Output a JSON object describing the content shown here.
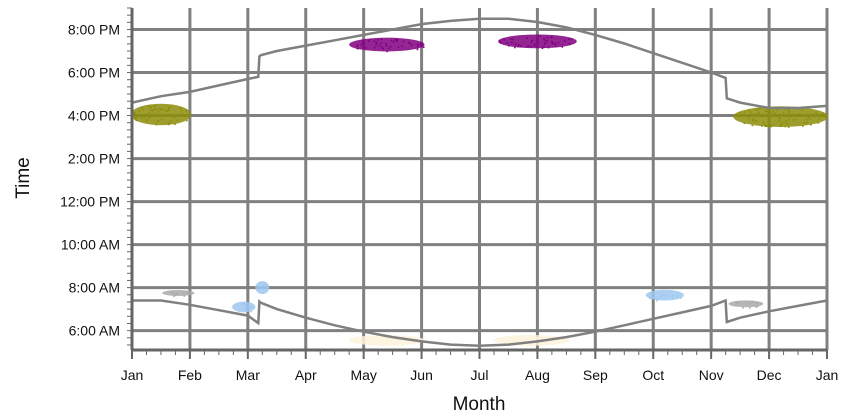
{
  "chart_data": {
    "type": "scatter",
    "xlabel": "Month",
    "ylabel": "Time",
    "x_tick_labels": [
      "Jan",
      "Feb",
      "Mar",
      "Apr",
      "May",
      "Jun",
      "Jul",
      "Aug",
      "Sep",
      "Oct",
      "Nov",
      "Dec",
      "Jan"
    ],
    "x_range_months": [
      0,
      12
    ],
    "y_tick_labels": [
      "6:00 AM",
      "8:00 AM",
      "10:00 AM",
      "12:00 PM",
      "2:00 PM",
      "4:00 PM",
      "6:00 PM",
      "8:00 PM"
    ],
    "y_tick_hours": [
      6,
      8,
      10,
      12,
      14,
      16,
      18,
      20
    ],
    "y_range_hours": [
      5.1,
      21.0
    ],
    "grid": true,
    "lines": [
      {
        "role": "sunset",
        "color": "#808080",
        "points": [
          [
            0.0,
            16.6
          ],
          [
            0.5,
            16.9
          ],
          [
            1.0,
            17.1
          ],
          [
            1.5,
            17.4
          ],
          [
            2.0,
            17.7
          ],
          [
            2.18,
            17.8
          ],
          [
            2.2,
            18.75
          ],
          [
            2.22,
            18.8
          ],
          [
            2.5,
            19.0
          ],
          [
            3.0,
            19.25
          ],
          [
            3.5,
            19.5
          ],
          [
            4.0,
            19.75
          ],
          [
            4.5,
            20.0
          ],
          [
            5.0,
            20.25
          ],
          [
            5.5,
            20.4
          ],
          [
            6.0,
            20.5
          ],
          [
            6.5,
            20.5
          ],
          [
            7.0,
            20.35
          ],
          [
            7.5,
            20.1
          ],
          [
            8.0,
            19.75
          ],
          [
            8.5,
            19.35
          ],
          [
            9.0,
            18.9
          ],
          [
            9.5,
            18.45
          ],
          [
            10.0,
            18.0
          ],
          [
            10.25,
            17.75
          ],
          [
            10.27,
            16.8
          ],
          [
            10.5,
            16.6
          ],
          [
            11.0,
            16.35
          ],
          [
            11.5,
            16.35
          ],
          [
            12.0,
            16.45
          ]
        ]
      },
      {
        "role": "sunrise",
        "color": "#808080",
        "points": [
          [
            0.0,
            7.4
          ],
          [
            0.5,
            7.4
          ],
          [
            1.0,
            7.2
          ],
          [
            1.5,
            6.95
          ],
          [
            2.0,
            6.7
          ],
          [
            2.18,
            6.35
          ],
          [
            2.2,
            7.35
          ],
          [
            2.22,
            7.3
          ],
          [
            2.5,
            7.0
          ],
          [
            3.0,
            6.6
          ],
          [
            3.5,
            6.25
          ],
          [
            4.0,
            5.95
          ],
          [
            4.5,
            5.7
          ],
          [
            5.0,
            5.5
          ],
          [
            5.5,
            5.35
          ],
          [
            6.0,
            5.3
          ],
          [
            6.5,
            5.35
          ],
          [
            7.0,
            5.5
          ],
          [
            7.5,
            5.7
          ],
          [
            8.0,
            5.95
          ],
          [
            8.5,
            6.25
          ],
          [
            9.0,
            6.55
          ],
          [
            9.5,
            6.85
          ],
          [
            10.0,
            7.15
          ],
          [
            10.25,
            7.4
          ],
          [
            10.27,
            6.4
          ],
          [
            10.5,
            6.6
          ],
          [
            11.0,
            6.9
          ],
          [
            11.5,
            7.15
          ],
          [
            12.0,
            7.4
          ]
        ]
      }
    ],
    "clusters": [
      {
        "color": "#8d8d0b",
        "center": [
          0.5,
          16.05
        ],
        "spread": [
          0.52,
          0.5
        ]
      },
      {
        "color": "#8d8d0b",
        "center": [
          11.2,
          15.95
        ],
        "spread": [
          0.82,
          0.48
        ]
      },
      {
        "color": "#800080",
        "center": [
          4.4,
          19.3
        ],
        "spread": [
          0.65,
          0.32
        ]
      },
      {
        "color": "#800080",
        "center": [
          7.0,
          19.45
        ],
        "spread": [
          0.68,
          0.32
        ]
      },
      {
        "color": "#9fc7ef",
        "center": [
          1.93,
          7.1
        ],
        "spread": [
          0.2,
          0.25
        ]
      },
      {
        "color": "#9fc7ef",
        "center": [
          2.25,
          8.0
        ],
        "spread": [
          0.12,
          0.3
        ]
      },
      {
        "color": "#9fc7ef",
        "center": [
          9.2,
          7.65
        ],
        "spread": [
          0.33,
          0.25
        ]
      },
      {
        "color": "#a9a9a9",
        "center": [
          0.8,
          7.75
        ],
        "spread": [
          0.28,
          0.14
        ]
      },
      {
        "color": "#a9a9a9",
        "center": [
          10.6,
          7.25
        ],
        "spread": [
          0.3,
          0.16
        ]
      },
      {
        "color": "#fdf3dc",
        "center": [
          4.4,
          5.55
        ],
        "spread": [
          0.65,
          0.25
        ]
      },
      {
        "color": "#fdf3dc",
        "center": [
          6.9,
          5.55
        ],
        "spread": [
          0.65,
          0.25
        ]
      }
    ]
  }
}
